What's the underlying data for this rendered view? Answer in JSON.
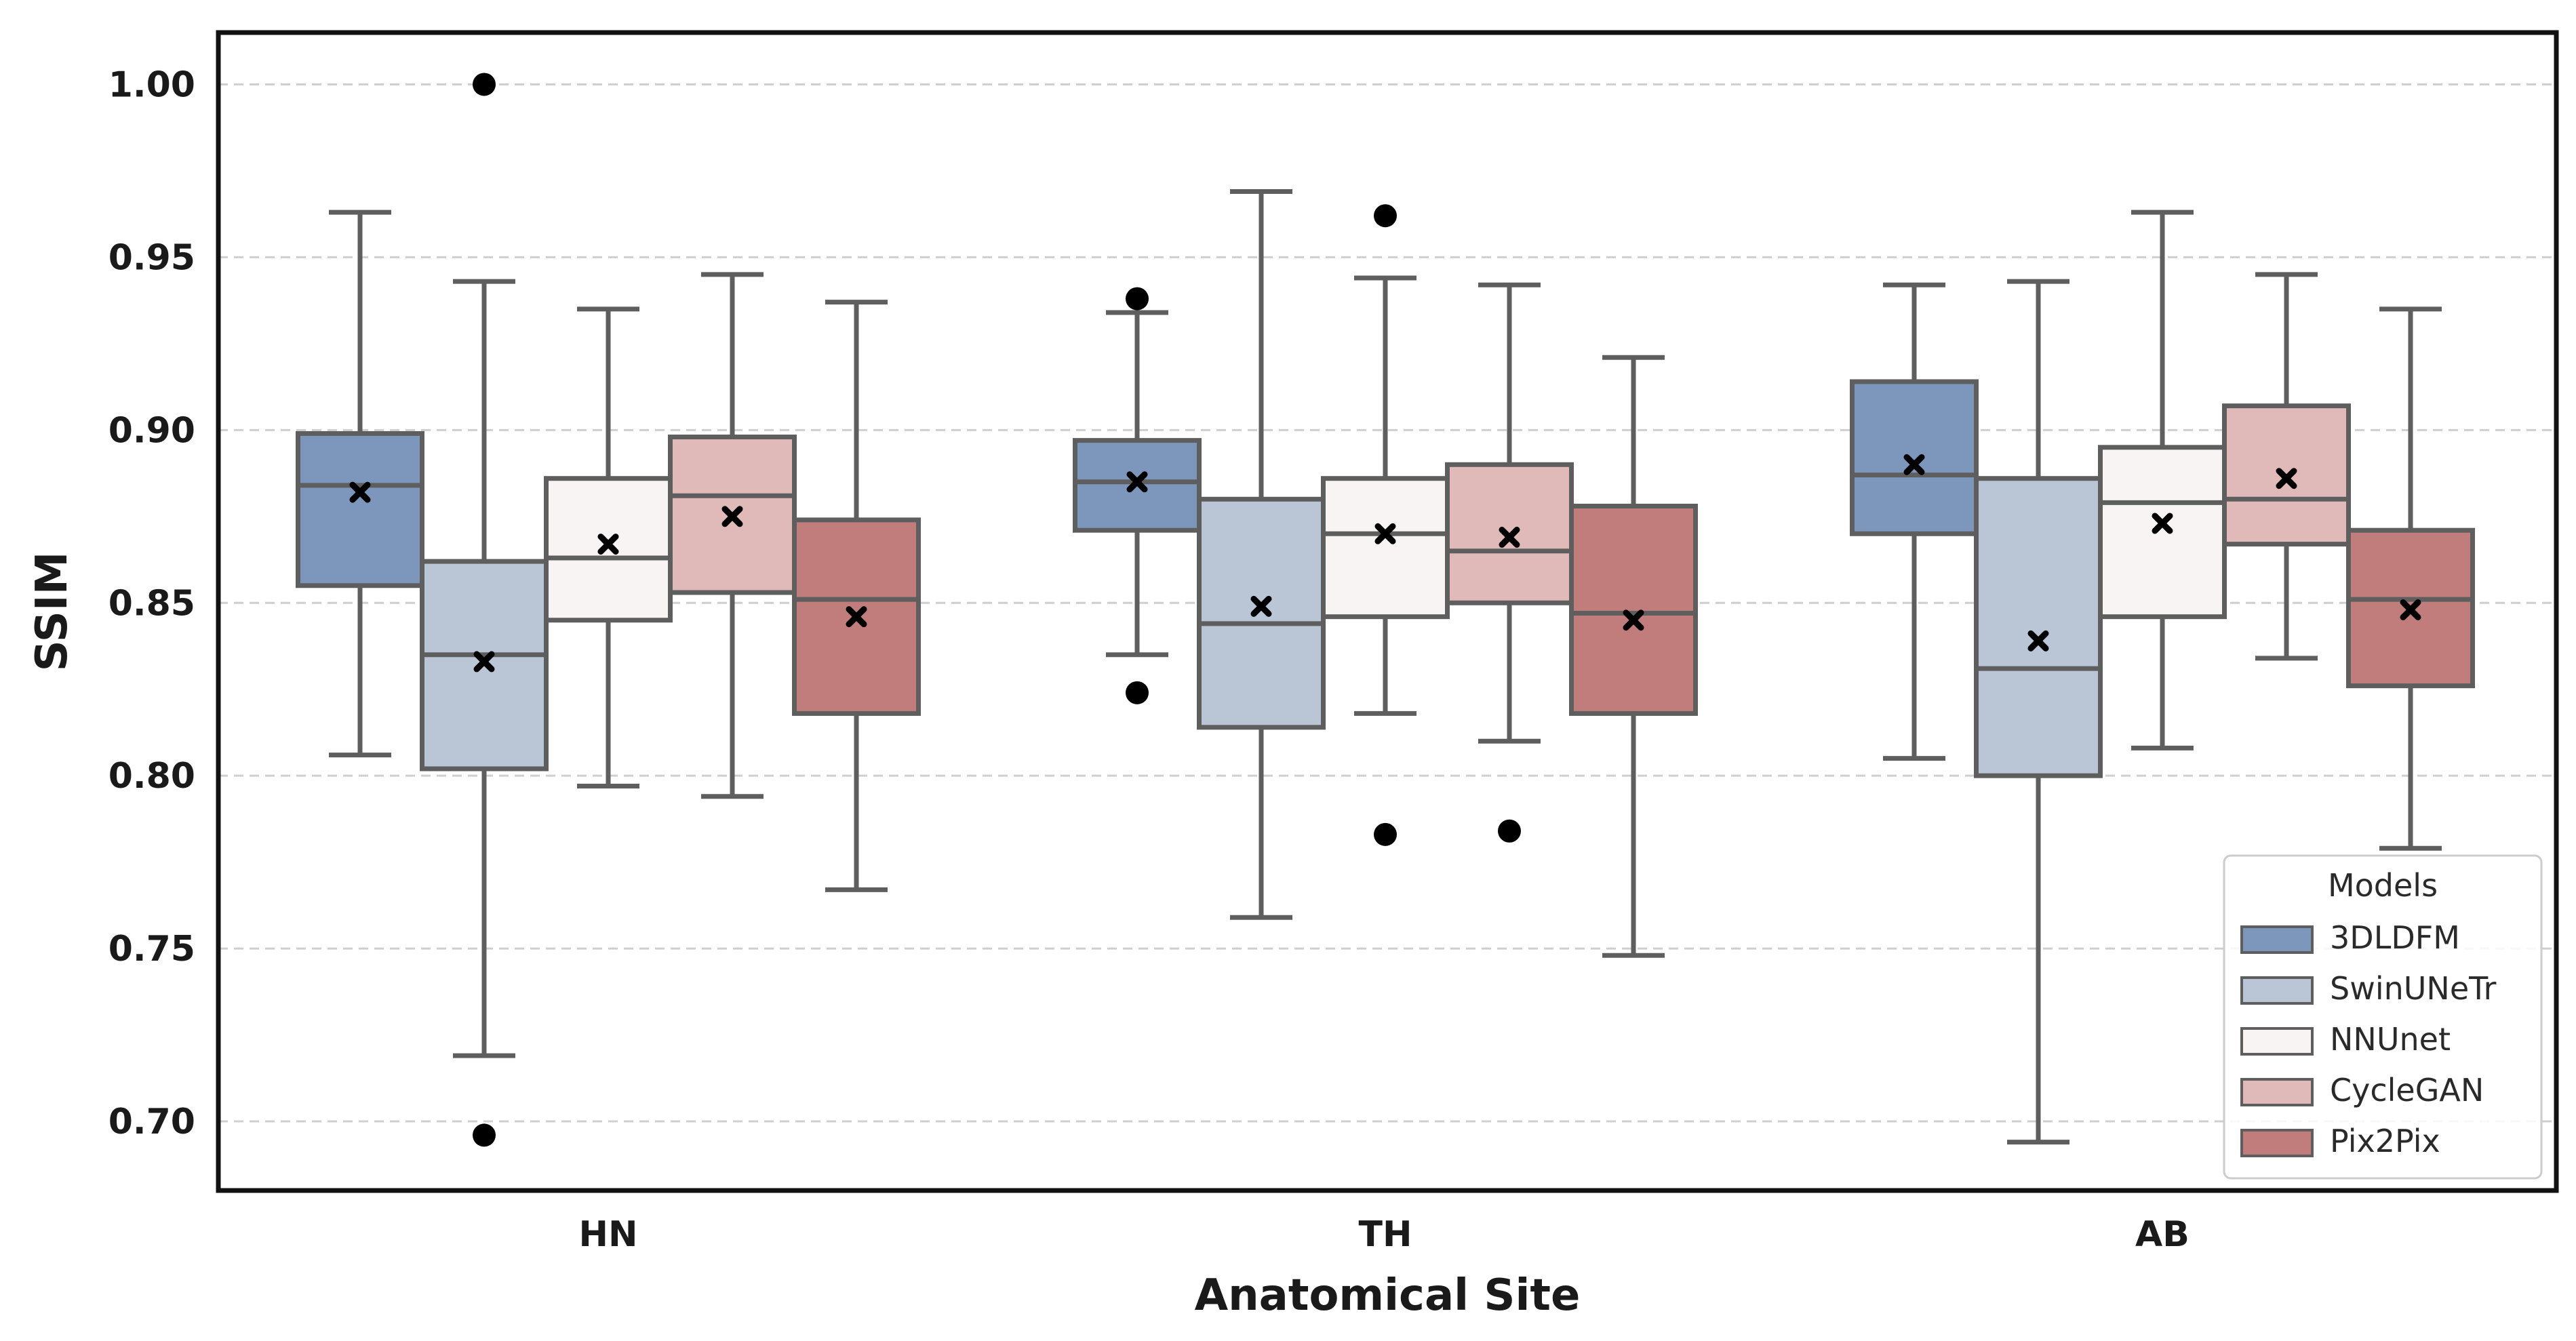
{
  "chart_data": {
    "type": "box",
    "title": "",
    "xlabel": "Anatomical Site",
    "ylabel": "SSIM",
    "ylim": [
      0.68,
      1.015
    ],
    "yticks": [
      "0.70",
      "0.75",
      "0.80",
      "0.85",
      "0.90",
      "0.95",
      "1.00"
    ],
    "grid": "horizontal-dashed",
    "categories": [
      "HN",
      "TH",
      "AB"
    ],
    "legend": {
      "title": "Models",
      "placement": "lower-right",
      "entries": [
        "3DLDFM",
        "SwinUNeTr",
        "NNUnet",
        "CycleGAN",
        "Pix2Pix"
      ]
    },
    "series": [
      {
        "name": "3DLDFM",
        "color": "#7c96bc",
        "boxes": [
          {
            "whisker_low": 0.806,
            "q1": 0.855,
            "median": 0.884,
            "q3": 0.899,
            "whisker_high": 0.963,
            "mean": 0.882,
            "outliers": []
          },
          {
            "whisker_low": 0.835,
            "q1": 0.871,
            "median": 0.885,
            "q3": 0.897,
            "whisker_high": 0.934,
            "mean": 0.885,
            "outliers": [
              0.938,
              0.824
            ]
          },
          {
            "whisker_low": 0.805,
            "q1": 0.87,
            "median": 0.887,
            "q3": 0.914,
            "whisker_high": 0.942,
            "mean": 0.89,
            "outliers": []
          }
        ]
      },
      {
        "name": "SwinUNeTr",
        "color": "#bac5d5",
        "boxes": [
          {
            "whisker_low": 0.719,
            "q1": 0.802,
            "median": 0.835,
            "q3": 0.862,
            "whisker_high": 0.943,
            "mean": 0.833,
            "outliers": [
              1.0,
              0.696
            ]
          },
          {
            "whisker_low": 0.759,
            "q1": 0.814,
            "median": 0.844,
            "q3": 0.88,
            "whisker_high": 0.969,
            "mean": 0.849,
            "outliers": []
          },
          {
            "whisker_low": 0.694,
            "q1": 0.8,
            "median": 0.831,
            "q3": 0.886,
            "whisker_high": 0.943,
            "mean": 0.839,
            "outliers": []
          }
        ]
      },
      {
        "name": "NNUnet",
        "color": "#f8f4f3",
        "boxes": [
          {
            "whisker_low": 0.797,
            "q1": 0.845,
            "median": 0.863,
            "q3": 0.886,
            "whisker_high": 0.935,
            "mean": 0.867,
            "outliers": []
          },
          {
            "whisker_low": 0.818,
            "q1": 0.846,
            "median": 0.87,
            "q3": 0.886,
            "whisker_high": 0.944,
            "mean": 0.87,
            "outliers": [
              0.962,
              0.783
            ]
          },
          {
            "whisker_low": 0.808,
            "q1": 0.846,
            "median": 0.879,
            "q3": 0.895,
            "whisker_high": 0.963,
            "mean": 0.873,
            "outliers": []
          }
        ]
      },
      {
        "name": "CycleGAN",
        "color": "#dfbab9",
        "boxes": [
          {
            "whisker_low": 0.794,
            "q1": 0.853,
            "median": 0.881,
            "q3": 0.898,
            "whisker_high": 0.945,
            "mean": 0.875,
            "outliers": []
          },
          {
            "whisker_low": 0.81,
            "q1": 0.85,
            "median": 0.865,
            "q3": 0.89,
            "whisker_high": 0.942,
            "mean": 0.869,
            "outliers": [
              0.784
            ]
          },
          {
            "whisker_low": 0.834,
            "q1": 0.867,
            "median": 0.88,
            "q3": 0.907,
            "whisker_high": 0.945,
            "mean": 0.886,
            "outliers": []
          }
        ]
      },
      {
        "name": "Pix2Pix",
        "color": "#c07d7c",
        "boxes": [
          {
            "whisker_low": 0.767,
            "q1": 0.818,
            "median": 0.851,
            "q3": 0.874,
            "whisker_high": 0.937,
            "mean": 0.846,
            "outliers": []
          },
          {
            "whisker_low": 0.748,
            "q1": 0.818,
            "median": 0.847,
            "q3": 0.878,
            "whisker_high": 0.921,
            "mean": 0.845,
            "outliers": []
          },
          {
            "whisker_low": 0.779,
            "q1": 0.826,
            "median": 0.851,
            "q3": 0.871,
            "whisker_high": 0.935,
            "mean": 0.848,
            "outliers": []
          }
        ]
      }
    ]
  }
}
